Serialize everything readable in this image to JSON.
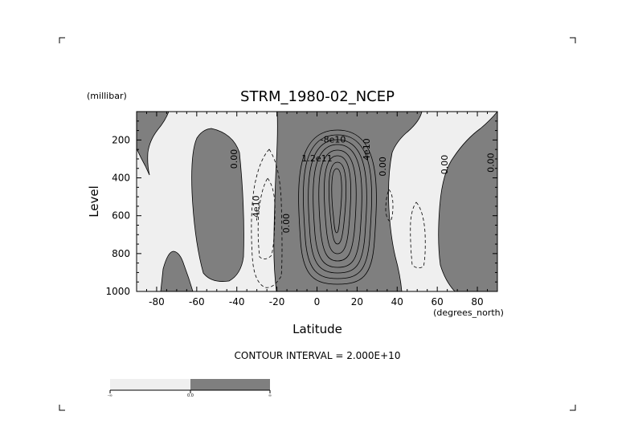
{
  "chart_data": {
    "type": "contour",
    "title": "STRM_1980-02_NCEP",
    "xlabel": "Latitude",
    "xunits": "(degrees_north)",
    "ylabel": "Level",
    "yunits": "(millibar)",
    "xlim": [
      -90,
      90
    ],
    "ylim": [
      1000,
      50
    ],
    "y_inverted": true,
    "x_ticks": [
      -80,
      -60,
      -40,
      -20,
      0,
      20,
      40,
      60,
      80
    ],
    "x_tick_labels": [
      "-80",
      "-60",
      "-40",
      "-20",
      "0",
      "20",
      "40",
      "60",
      "80"
    ],
    "y_ticks": [
      200,
      400,
      600,
      800,
      1000
    ],
    "y_tick_labels": [
      "200",
      "400",
      "600",
      "800",
      "1000"
    ],
    "contour_interval_text": "CONTOUR INTERVAL = 2.000E+10",
    "contour_labels": [
      {
        "text": "0.00",
        "x": -41,
        "y": 300,
        "rotation": -90
      },
      {
        "text": "-4e10",
        "x": -30,
        "y": 560,
        "rotation": -90
      },
      {
        "text": "0.00",
        "x": -15,
        "y": 640,
        "rotation": -90
      },
      {
        "text": "-8e10",
        "x": 8,
        "y": 200,
        "rotation": 0
      },
      {
        "text": "4e10",
        "x": 25,
        "y": 250,
        "rotation": -90
      },
      {
        "text": "1.2e11",
        "x": 0,
        "y": 300,
        "rotation": 0
      },
      {
        "text": "0.00",
        "x": 33,
        "y": 340,
        "rotation": -90
      },
      {
        "text": "0.00",
        "x": 64,
        "y": 330,
        "rotation": -90
      },
      {
        "text": "0.00",
        "x": 87,
        "y": 320,
        "rotation": -90
      }
    ],
    "colorbar": {
      "colors": [
        "#efefef",
        "#7f7f7f"
      ],
      "labels": [
        "-∞",
        "0.0",
        "∞"
      ]
    },
    "fill_colors": {
      "negative": "#efefef",
      "positive": "#7f7f7f"
    }
  }
}
